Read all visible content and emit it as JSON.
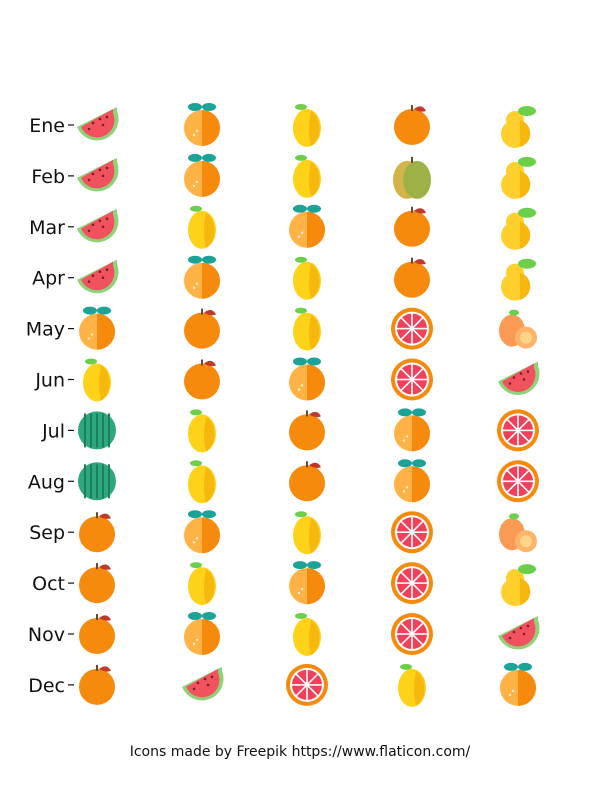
{
  "chart_data": {
    "type": "icon-grid",
    "rows": [
      "Ene",
      "Feb",
      "Mar",
      "Apr",
      "May",
      "Jun",
      "Jul",
      "Aug",
      "Sep",
      "Oct",
      "Nov",
      "Dec"
    ],
    "columns": 5,
    "cells": [
      [
        "watermelon-slice",
        "tangerine",
        "lemon",
        "orange",
        "pear"
      ],
      [
        "watermelon-slice",
        "tangerine",
        "lemon",
        "lime",
        "pear"
      ],
      [
        "watermelon-slice",
        "lemon",
        "tangerine",
        "orange",
        "pear"
      ],
      [
        "watermelon-slice",
        "tangerine",
        "lemon",
        "orange",
        "pear"
      ],
      [
        "tangerine",
        "orange",
        "lemon",
        "grapefruit",
        "persimmon"
      ],
      [
        "lemon",
        "orange",
        "tangerine",
        "grapefruit",
        "watermelon-slice"
      ],
      [
        "watermelon",
        "lemon",
        "orange",
        "tangerine",
        "grapefruit"
      ],
      [
        "watermelon",
        "lemon",
        "orange",
        "tangerine",
        "grapefruit"
      ],
      [
        "orange",
        "tangerine",
        "lemon",
        "grapefruit",
        "persimmon"
      ],
      [
        "orange",
        "lemon",
        "tangerine",
        "grapefruit",
        "pear"
      ],
      [
        "orange",
        "tangerine",
        "lemon",
        "grapefruit",
        "watermelon-slice"
      ],
      [
        "orange",
        "watermelon-slice",
        "grapefruit",
        "lemon",
        "tangerine"
      ]
    ]
  },
  "colors": {
    "watermelon_flesh": "#f2525e",
    "watermelon_rind": "#8fd27a",
    "watermelon_green": "#2fa77d",
    "orange": "#f58a0d",
    "tangerine_light": "#ffb347",
    "lemon": "#ffd21a",
    "lime": "#9db246",
    "grapefruit": "#f0405a",
    "pear": "#ffcf2e",
    "persimmon": "#fa9a55",
    "teal_leaf": "#1aa396",
    "green_leaf": "#6ccf4a"
  },
  "footer": {
    "credit": "Icons made by Freepik https://www.flaticon.com/"
  }
}
